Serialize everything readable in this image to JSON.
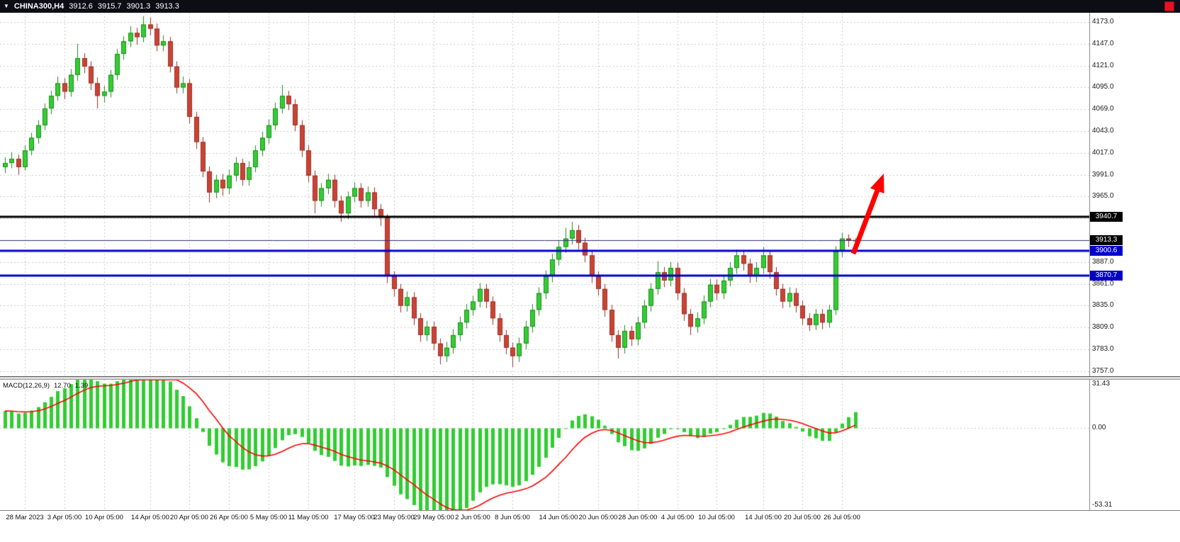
{
  "topbar": {
    "dropdown_icon": "▼",
    "symbol_period": "CHINA300,H4",
    "open": "3912.6",
    "high": "3915.7",
    "low": "3901.3",
    "close": "3913.3"
  },
  "colors": {
    "topbar_bg": "#0d0d15",
    "chart_bg": "#ffffff",
    "grid": "#cbcbcb",
    "axis_line": "#808080",
    "up_fill": "#32cd32",
    "up_stroke": "#1f8b1f",
    "down_fill": "#c94436",
    "down_stroke": "#9e2f24",
    "macd_hist": "#32cd32",
    "macd_signal": "#ff0000",
    "close_button": "#e81123",
    "arrow": "#ff0000"
  },
  "chart_data": {
    "type": "candlestick",
    "symbol": "CHINA300",
    "timeframe": "H4",
    "price_axis": {
      "top_price": 4184,
      "bottom_price": 3751,
      "decimals": 1,
      "ticks": [
        4173,
        4147,
        4121,
        4095,
        4069,
        4043,
        4017,
        3991,
        3965,
        3939,
        3913,
        3887,
        3861,
        3835,
        3809,
        3783,
        3757
      ],
      "hidden_ticks": [
        3939,
        3913
      ]
    },
    "levels": [
      {
        "name": "resistance-level-3940",
        "text": "3940.7",
        "value": 3940.7,
        "line_color": "#000000",
        "line_width": 3,
        "badge_bg": "#000000"
      },
      {
        "name": "current-price-3913",
        "text": "3913.3",
        "value": 3913.3,
        "line_color": "#2f2f6e",
        "line_width": 1,
        "badge_bg": "#000000"
      },
      {
        "name": "support-level-3900",
        "text": "3900.6",
        "value": 3900.6,
        "line_color": "#0000cc",
        "line_width": 3,
        "badge_bg": "#0000cc"
      },
      {
        "name": "support-level-3870",
        "text": "3870.7",
        "value": 3870.7,
        "line_color": "#0000cc",
        "line_width": 3,
        "badge_bg": "#0000cc"
      }
    ],
    "time_labels": [
      "28 Mar 2023",
      "3 Apr 05:00",
      "10 Apr 05:00",
      "14 Apr 05:00",
      "20 Apr 05:00",
      "26 Apr 05:00",
      "5 May 05:00",
      "11 May 05:00",
      "17 May 05:00",
      "23 May 05:00",
      "29 May 05:00",
      "2 Jun 05:00",
      "8 Jun 05:00",
      "14 Jun 05:00",
      "20 Jun 05:00",
      "28 Jun 05:00",
      "4 Jul 05:00",
      "10 Jul 05:00",
      "14 Jul 05:00",
      "20 Jul 05:00",
      "26 Jul 05:00"
    ],
    "time_anchor_indices": [
      3,
      9,
      15,
      22,
      28,
      34,
      40,
      46,
      53,
      59,
      65,
      71,
      77,
      84,
      90,
      96,
      102,
      108,
      115,
      121,
      127
    ],
    "candles": [
      [
        4000,
        4012,
        3993,
        4005
      ],
      [
        4005,
        4018,
        3999,
        4010
      ],
      [
        4010,
        4015,
        3991,
        4000
      ],
      [
        4000,
        4026,
        3996,
        4020
      ],
      [
        4020,
        4041,
        4014,
        4035
      ],
      [
        4035,
        4056,
        4028,
        4050
      ],
      [
        4050,
        4076,
        4044,
        4070
      ],
      [
        4070,
        4091,
        4063,
        4085
      ],
      [
        4085,
        4108,
        4079,
        4100
      ],
      [
        4100,
        4106,
        4081,
        4090
      ],
      [
        4090,
        4117,
        4084,
        4110
      ],
      [
        4110,
        4147,
        4103,
        4130
      ],
      [
        4130,
        4136,
        4112,
        4120
      ],
      [
        4120,
        4126,
        4092,
        4100
      ],
      [
        4100,
        4107,
        4070,
        4085
      ],
      [
        4085,
        4097,
        4077,
        4090
      ],
      [
        4090,
        4116,
        4083,
        4110
      ],
      [
        4110,
        4141,
        4104,
        4135
      ],
      [
        4135,
        4156,
        4128,
        4150
      ],
      [
        4150,
        4168,
        4143,
        4160
      ],
      [
        4160,
        4166,
        4146,
        4155
      ],
      [
        4155,
        4180,
        4149,
        4170
      ],
      [
        4170,
        4178,
        4157,
        4165
      ],
      [
        4165,
        4171,
        4138,
        4145
      ],
      [
        4145,
        4157,
        4138,
        4150
      ],
      [
        4150,
        4155,
        4113,
        4120
      ],
      [
        4120,
        4126,
        4088,
        4095
      ],
      [
        4095,
        4108,
        4088,
        4100
      ],
      [
        4100,
        4105,
        4052,
        4060
      ],
      [
        4060,
        4066,
        4022,
        4030
      ],
      [
        4030,
        4036,
        3988,
        3995
      ],
      [
        3995,
        4001,
        3958,
        3970
      ],
      [
        3970,
        3991,
        3963,
        3985
      ],
      [
        3985,
        3992,
        3966,
        3975
      ],
      [
        3975,
        3997,
        3968,
        3990
      ],
      [
        3990,
        4012,
        3983,
        4005
      ],
      [
        4005,
        4010,
        3978,
        3985
      ],
      [
        3985,
        4007,
        3978,
        4000
      ],
      [
        4000,
        4026,
        3994,
        4020
      ],
      [
        4020,
        4042,
        4013,
        4035
      ],
      [
        4035,
        4057,
        4028,
        4050
      ],
      [
        4050,
        4077,
        4044,
        4070
      ],
      [
        4070,
        4098,
        4064,
        4085
      ],
      [
        4085,
        4091,
        4068,
        4075
      ],
      [
        4075,
        4081,
        4043,
        4050
      ],
      [
        4050,
        4056,
        4012,
        4020
      ],
      [
        4020,
        4026,
        3982,
        3990
      ],
      [
        3990,
        3996,
        3945,
        3960
      ],
      [
        3960,
        3981,
        3953,
        3975
      ],
      [
        3975,
        3992,
        3968,
        3985
      ],
      [
        3985,
        3991,
        3952,
        3960
      ],
      [
        3960,
        3966,
        3935,
        3945
      ],
      [
        3945,
        3971,
        3938,
        3965
      ],
      [
        3965,
        3982,
        3958,
        3975
      ],
      [
        3975,
        3981,
        3952,
        3960
      ],
      [
        3960,
        3977,
        3953,
        3970
      ],
      [
        3970,
        3976,
        3942,
        3950
      ],
      [
        3950,
        3956,
        3930,
        3940
      ],
      [
        3940,
        3944,
        3862,
        3870
      ],
      [
        3870,
        3876,
        3846,
        3855
      ],
      [
        3855,
        3861,
        3827,
        3835
      ],
      [
        3835,
        3852,
        3828,
        3845
      ],
      [
        3845,
        3851,
        3812,
        3820
      ],
      [
        3820,
        3826,
        3792,
        3800
      ],
      [
        3800,
        3817,
        3793,
        3810
      ],
      [
        3810,
        3816,
        3782,
        3790
      ],
      [
        3790,
        3796,
        3765,
        3775
      ],
      [
        3775,
        3792,
        3768,
        3785
      ],
      [
        3785,
        3807,
        3778,
        3800
      ],
      [
        3800,
        3822,
        3793,
        3815
      ],
      [
        3815,
        3837,
        3808,
        3830
      ],
      [
        3830,
        3847,
        3823,
        3840
      ],
      [
        3840,
        3862,
        3833,
        3855
      ],
      [
        3855,
        3861,
        3832,
        3840
      ],
      [
        3840,
        3846,
        3812,
        3820
      ],
      [
        3820,
        3826,
        3792,
        3800
      ],
      [
        3800,
        3806,
        3777,
        3785
      ],
      [
        3785,
        3791,
        3762,
        3775
      ],
      [
        3775,
        3797,
        3768,
        3790
      ],
      [
        3790,
        3817,
        3783,
        3810
      ],
      [
        3810,
        3837,
        3803,
        3830
      ],
      [
        3830,
        3857,
        3823,
        3850
      ],
      [
        3850,
        3877,
        3843,
        3870
      ],
      [
        3870,
        3897,
        3863,
        3890
      ],
      [
        3890,
        3912,
        3883,
        3905
      ],
      [
        3905,
        3928,
        3898,
        3915
      ],
      [
        3915,
        3935,
        3908,
        3925
      ],
      [
        3925,
        3931,
        3902,
        3910
      ],
      [
        3910,
        3916,
        3887,
        3895
      ],
      [
        3895,
        3901,
        3862,
        3870
      ],
      [
        3870,
        3876,
        3847,
        3855
      ],
      [
        3855,
        3861,
        3822,
        3830
      ],
      [
        3830,
        3836,
        3792,
        3800
      ],
      [
        3800,
        3806,
        3772,
        3785
      ],
      [
        3785,
        3812,
        3778,
        3805
      ],
      [
        3805,
        3811,
        3787,
        3795
      ],
      [
        3795,
        3822,
        3788,
        3815
      ],
      [
        3815,
        3842,
        3808,
        3835
      ],
      [
        3835,
        3862,
        3828,
        3855
      ],
      [
        3855,
        3888,
        3848,
        3875
      ],
      [
        3875,
        3881,
        3857,
        3865
      ],
      [
        3865,
        3887,
        3858,
        3880
      ],
      [
        3880,
        3886,
        3842,
        3850
      ],
      [
        3850,
        3856,
        3817,
        3825
      ],
      [
        3825,
        3831,
        3800,
        3810
      ],
      [
        3810,
        3827,
        3803,
        3820
      ],
      [
        3820,
        3847,
        3813,
        3840
      ],
      [
        3840,
        3867,
        3833,
        3860
      ],
      [
        3860,
        3866,
        3842,
        3850
      ],
      [
        3850,
        3872,
        3843,
        3865
      ],
      [
        3865,
        3887,
        3858,
        3880
      ],
      [
        3880,
        3902,
        3873,
        3895
      ],
      [
        3895,
        3901,
        3877,
        3885
      ],
      [
        3885,
        3891,
        3862,
        3870
      ],
      [
        3870,
        3887,
        3863,
        3880
      ],
      [
        3880,
        3905,
        3873,
        3895
      ],
      [
        3895,
        3901,
        3867,
        3875
      ],
      [
        3875,
        3881,
        3847,
        3855
      ],
      [
        3855,
        3861,
        3832,
        3840
      ],
      [
        3840,
        3857,
        3833,
        3850
      ],
      [
        3850,
        3856,
        3827,
        3835
      ],
      [
        3835,
        3841,
        3812,
        3820
      ],
      [
        3820,
        3826,
        3805,
        3812
      ],
      [
        3812,
        3831,
        3806,
        3825
      ],
      [
        3825,
        3831,
        3807,
        3815
      ],
      [
        3815,
        3836,
        3809,
        3830
      ],
      [
        3830,
        3906,
        3824,
        3900
      ],
      [
        3900,
        3922,
        3893,
        3915
      ],
      [
        3915,
        3920,
        3905,
        3912.6
      ],
      [
        3912.6,
        3915.7,
        3901.3,
        3913.3
      ]
    ],
    "macd": {
      "name": "MACD(12,26,9)",
      "fast": 12,
      "slow": 26,
      "smoothing": 9,
      "value_main": "12.70",
      "value_signal": "1.39",
      "axis_max": 31.43,
      "axis_min": -53.31,
      "axis_labels": [
        "31.43",
        "0.00",
        "-53.31"
      ]
    },
    "annotation_arrow": {
      "from": [
        1204,
        358
      ],
      "to": [
        1247,
        245
      ],
      "color": "#ff0000"
    }
  }
}
